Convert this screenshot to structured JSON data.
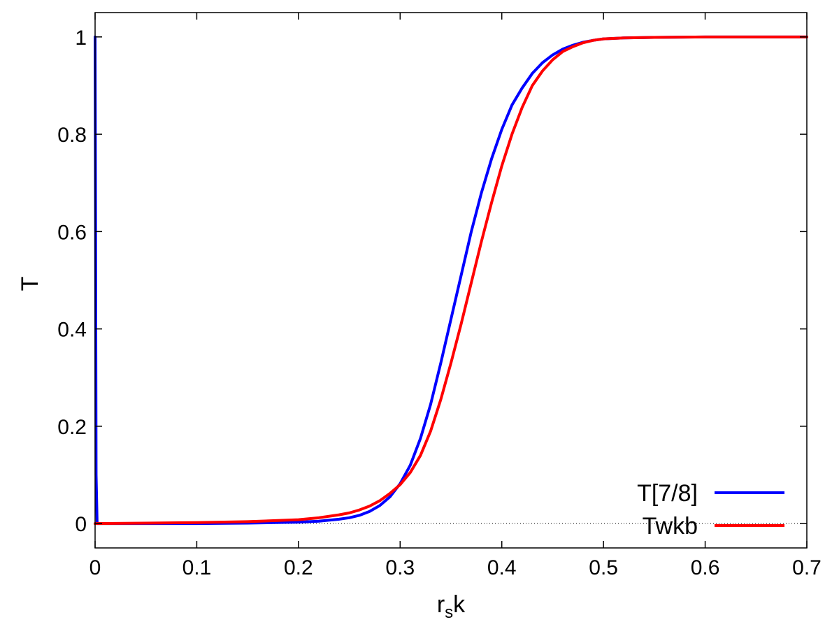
{
  "chart_data": {
    "type": "line",
    "title": "",
    "xlabel_main": "r",
    "xlabel_sub": "s",
    "xlabel_tail": "k",
    "ylabel": "T",
    "xlim": [
      0,
      0.7
    ],
    "ylim": [
      -0.05,
      1.05
    ],
    "xticks": [
      0,
      0.1,
      0.2,
      0.3,
      0.4,
      0.5,
      0.6,
      0.7
    ],
    "xtick_labels": [
      "0",
      "0.1",
      "0.2",
      "0.3",
      "0.4",
      "0.5",
      "0.6",
      "0.7"
    ],
    "yticks": [
      0,
      0.2,
      0.4,
      0.6,
      0.8,
      1
    ],
    "ytick_labels": [
      "0",
      "0.2",
      "0.4",
      "0.6",
      "0.8",
      "1"
    ],
    "grid": false,
    "zero_line": true,
    "legend_position": "bottom-right",
    "series": [
      {
        "name": "T[7/8]",
        "color": "#0000ff",
        "x": [
          0,
          0.0005,
          0.001,
          0.002,
          0.05,
          0.1,
          0.15,
          0.2,
          0.22,
          0.24,
          0.25,
          0.26,
          0.27,
          0.28,
          0.29,
          0.3,
          0.31,
          0.32,
          0.33,
          0.34,
          0.35,
          0.36,
          0.37,
          0.38,
          0.39,
          0.4,
          0.41,
          0.42,
          0.43,
          0.44,
          0.45,
          0.46,
          0.47,
          0.48,
          0.49,
          0.5,
          0.52,
          0.55,
          0.6,
          0.65,
          0.7
        ],
        "y": [
          1.0,
          0.6,
          0.1,
          0.0,
          0.0,
          0.0,
          0.001,
          0.003,
          0.005,
          0.009,
          0.012,
          0.017,
          0.025,
          0.037,
          0.055,
          0.082,
          0.12,
          0.175,
          0.245,
          0.33,
          0.42,
          0.51,
          0.6,
          0.68,
          0.75,
          0.81,
          0.86,
          0.895,
          0.925,
          0.947,
          0.963,
          0.975,
          0.983,
          0.989,
          0.993,
          0.996,
          0.998,
          0.999,
          1.0,
          1.0,
          1.0
        ]
      },
      {
        "name": "Twkb",
        "color": "#ff0000",
        "x": [
          0,
          0.05,
          0.1,
          0.15,
          0.2,
          0.22,
          0.24,
          0.25,
          0.26,
          0.27,
          0.28,
          0.29,
          0.3,
          0.31,
          0.32,
          0.33,
          0.34,
          0.35,
          0.36,
          0.37,
          0.38,
          0.39,
          0.4,
          0.41,
          0.42,
          0.43,
          0.44,
          0.45,
          0.46,
          0.47,
          0.48,
          0.49,
          0.5,
          0.52,
          0.55,
          0.6,
          0.65,
          0.7
        ],
        "y": [
          0.0,
          0.001,
          0.002,
          0.004,
          0.008,
          0.012,
          0.018,
          0.022,
          0.028,
          0.036,
          0.047,
          0.062,
          0.08,
          0.105,
          0.14,
          0.19,
          0.255,
          0.33,
          0.41,
          0.495,
          0.58,
          0.66,
          0.735,
          0.8,
          0.855,
          0.9,
          0.93,
          0.953,
          0.97,
          0.98,
          0.988,
          0.993,
          0.996,
          0.998,
          0.999,
          1.0,
          1.0,
          1.0
        ]
      }
    ]
  }
}
